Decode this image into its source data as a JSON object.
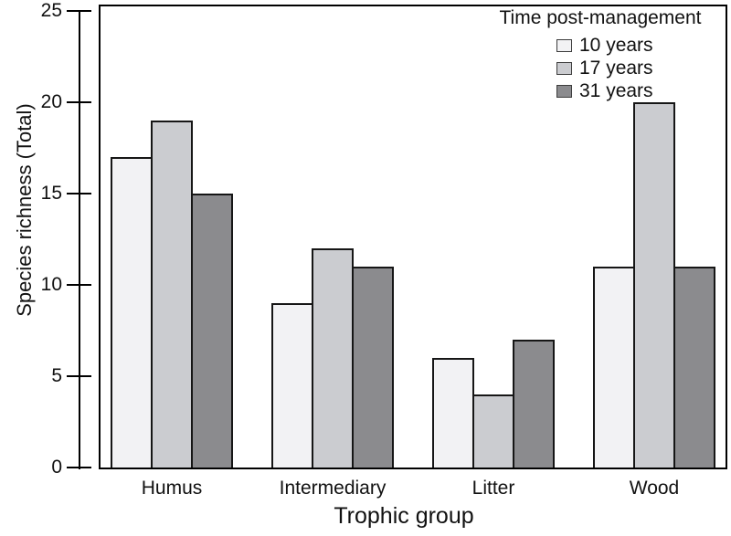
{
  "chart_data": {
    "type": "bar",
    "title": "",
    "xlabel": "Trophic group",
    "ylabel": "Species richness (Total)",
    "categories": [
      "Humus",
      "Intermediary",
      "Litter",
      "Wood"
    ],
    "series": [
      {
        "name": "10 years",
        "color": "#f2f2f4",
        "values": [
          17,
          9,
          6,
          11
        ]
      },
      {
        "name": "17 years",
        "color": "#cbccd0",
        "values": [
          19,
          12,
          4,
          20
        ]
      },
      {
        "name": "31 years",
        "color": "#8b8b8e",
        "values": [
          15,
          11,
          7,
          11
        ]
      }
    ],
    "legend_title": "Time post-management",
    "legend_position": "top-right-inside",
    "ylim": [
      0,
      25
    ],
    "yticks": [
      0,
      5,
      10,
      15,
      20,
      25
    ],
    "grid": false,
    "bar_border_color": "#161616",
    "axis_color": "#000000"
  }
}
